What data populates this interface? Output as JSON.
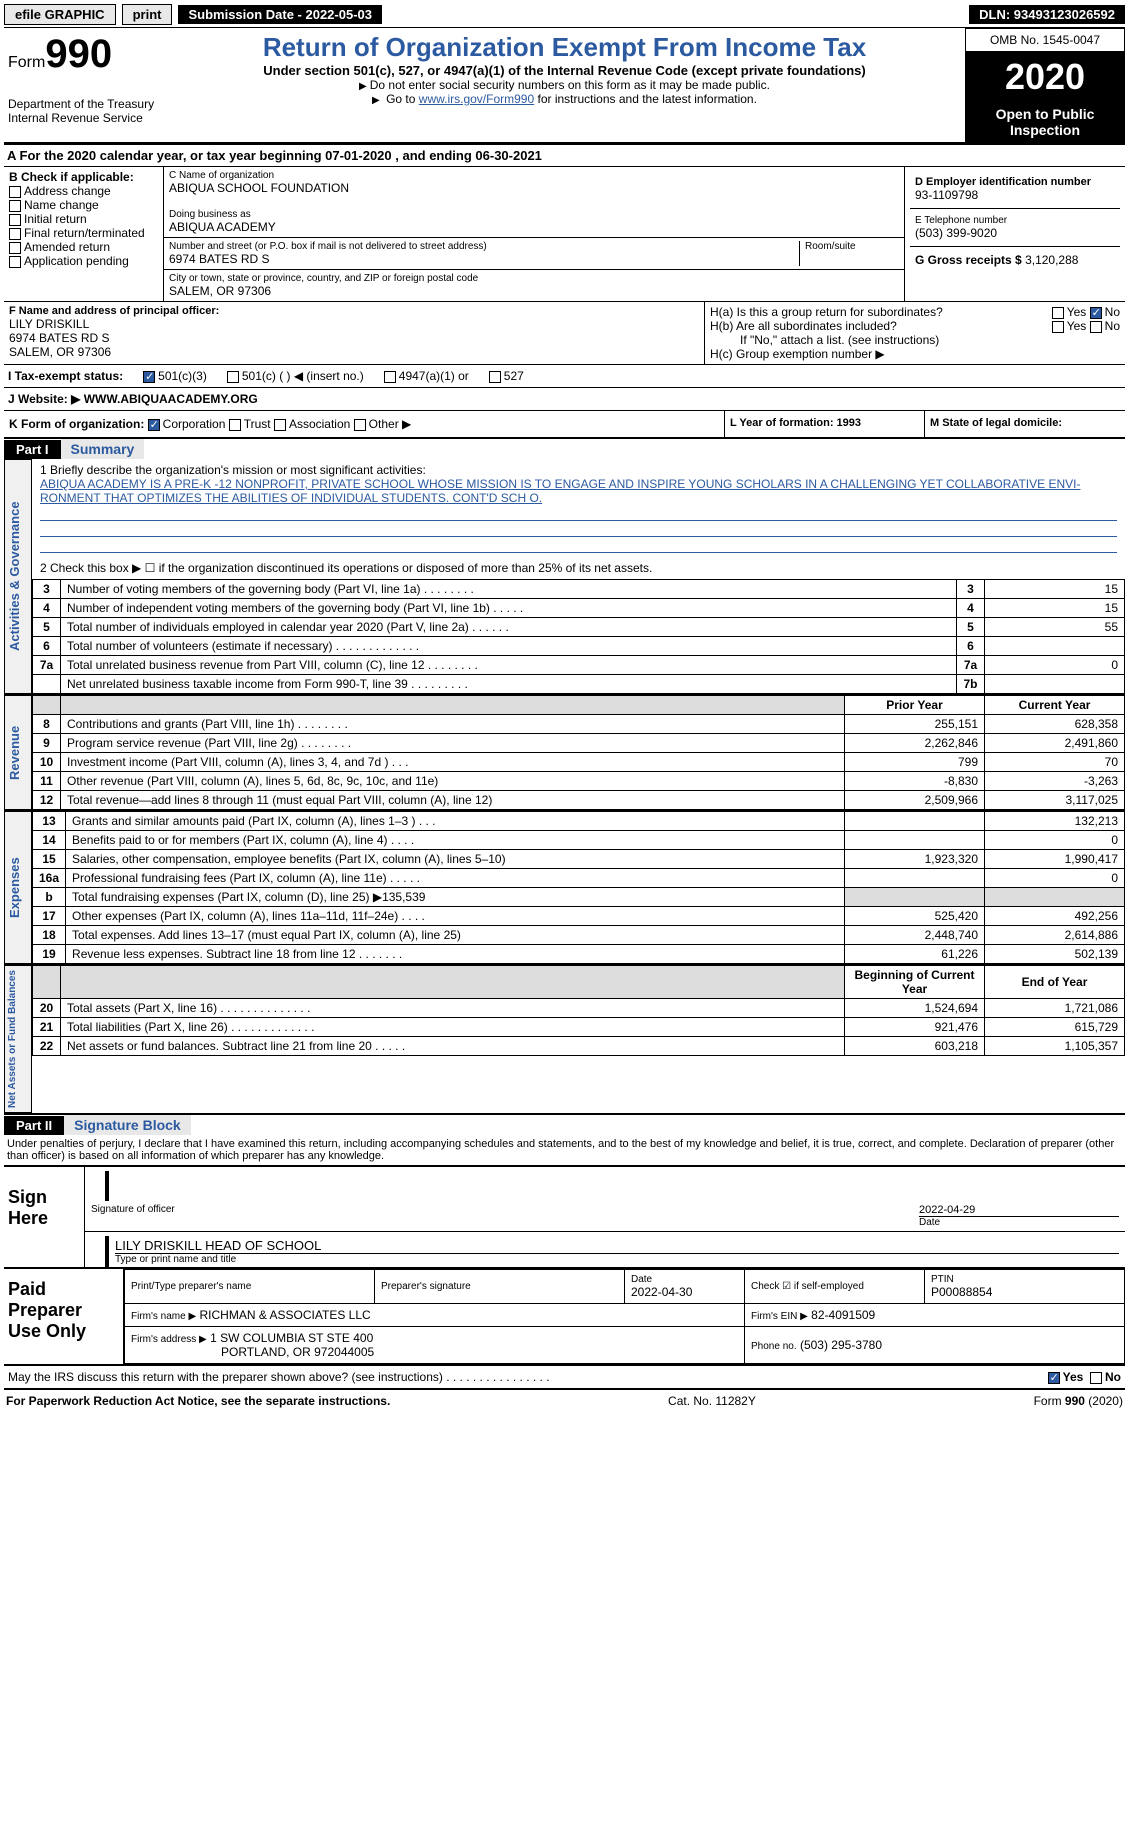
{
  "topbar": {
    "efile": "efile GRAPHIC",
    "print": "print",
    "submission": "Submission Date - 2022-05-03",
    "dln": "DLN: 93493123026592"
  },
  "header": {
    "form_label": "Form",
    "form_no": "990",
    "dept": "Department of the Treasury\nInternal Revenue Service",
    "title": "Return of Organization Exempt From Income Tax",
    "subtitle": "Under section 501(c), 527, or 4947(a)(1) of the Internal Revenue Code (except private foundations)",
    "note1": "Do not enter social security numbers on this form as it may be made public.",
    "note2_a": "Go to ",
    "note2_link": "www.irs.gov/Form990",
    "note2_b": " for instructions and the latest information.",
    "omb": "OMB No. 1545-0047",
    "year": "2020",
    "open": "Open to Public Inspection"
  },
  "calendar": "A For the 2020 calendar year, or tax year beginning 07-01-2020     , and ending 06-30-2021",
  "boxB": {
    "label": "B Check if applicable:",
    "opts": [
      "Address change",
      "Name change",
      "Initial return",
      "Final return/terminated",
      "Amended return",
      "Application pending"
    ]
  },
  "boxC": {
    "name_lbl": "C Name of organization",
    "name": "ABIQUA SCHOOL FOUNDATION",
    "dba_lbl": "Doing business as",
    "dba": "ABIQUA ACADEMY",
    "addr_lbl": "Number and street (or P.O. box if mail is not delivered to street address)",
    "room_lbl": "Room/suite",
    "addr": "6974 BATES RD S",
    "city_lbl": "City or town, state or province, country, and ZIP or foreign postal code",
    "city": "SALEM, OR  97306"
  },
  "boxD": {
    "lbl": "D Employer identification number",
    "val": "93-1109798"
  },
  "boxE": {
    "lbl": "E Telephone number",
    "val": "(503) 399-9020"
  },
  "boxG": {
    "lbl": "G Gross receipts $",
    "val": "3,120,288"
  },
  "boxF": {
    "lbl": "F Name and address of principal officer:",
    "name": "LILY DRISKILL",
    "addr1": "6974 BATES RD S",
    "addr2": "SALEM, OR  97306"
  },
  "boxH": {
    "a_q": "H(a)  Is this a group return for subordinates?",
    "yes": "Yes",
    "no": "No",
    "b_q": "H(b)  Are all subordinates included?",
    "b_note": "If \"No,\" attach a list. (see instructions)",
    "c_q": "H(c)  Group exemption number ▶"
  },
  "taxex": {
    "lbl": "I      Tax-exempt status:",
    "c501c3": "501(c)(3)",
    "c501cblank": "501(c) (  ) ◀ (insert no.)",
    "c4947": "4947(a)(1) or",
    "c527": "527"
  },
  "website": {
    "lbl": "J   Website: ▶",
    "val": "WWW.ABIQUAACADEMY.ORG"
  },
  "korg": {
    "lbl": "K Form of organization:",
    "opts": [
      "Corporation",
      "Trust",
      "Association",
      "Other ▶"
    ],
    "L": "L Year of formation: 1993",
    "M": "M State of legal domicile:"
  },
  "part1": {
    "hdr": "Part I",
    "title": "Summary"
  },
  "mission": {
    "q": "1  Briefly describe the organization's mission or most significant activities:",
    "text": "ABIQUA ACADEMY IS A PRE-K -12 NONPROFIT, PRIVATE SCHOOL WHOSE MISSION IS TO ENGAGE AND INSPIRE YOUNG SCHOLARS IN A CHALLENGING YET COLLABORATIVE ENVI- RONMENT THAT OPTIMIZES THE ABILITIES OF INDIVIDUAL STUDENTS. CONT'D SCH O."
  },
  "q2": "2   Check this box ▶  ☐  if the organization discontinued its operations or disposed of more than 25% of its net assets.",
  "gov_rows": [
    {
      "n": "3",
      "desc": "Number of voting members of the governing body (Part VI, line 1a)  .    .    .    .    .    .    .    .",
      "box": "3",
      "val": "15"
    },
    {
      "n": "4",
      "desc": "Number of independent voting members of the governing body (Part VI, line 1b)  .    .    .    .    .",
      "box": "4",
      "val": "15"
    },
    {
      "n": "5",
      "desc": "Total number of individuals employed in calendar year 2020 (Part V, line 2a)  .    .    .    .    .    .",
      "box": "5",
      "val": "55"
    },
    {
      "n": "6",
      "desc": "Total number of volunteers (estimate if necessary)  .    .    .    .    .    .    .    .    .    .    .    .    .",
      "box": "6",
      "val": ""
    },
    {
      "n": "7a",
      "desc": "Total unrelated business revenue from Part VIII, column (C), line 12  .    .    .    .    .    .    .    .",
      "box": "7a",
      "val": "0"
    },
    {
      "n": "",
      "desc": "Net unrelated business taxable income from Form 990-T, line 39  .    .    .    .    .    .    .    .    .",
      "box": "7b",
      "val": ""
    }
  ],
  "rev_hdr": {
    "prior": "Prior Year",
    "current": "Current Year"
  },
  "revenue_label": "Revenue",
  "revenue_rows": [
    {
      "n": "8",
      "desc": "Contributions and grants (Part VIII, line 1h)  .    .    .    .    .    .    .    .",
      "p": "255,151",
      "c": "628,358"
    },
    {
      "n": "9",
      "desc": "Program service revenue (Part VIII, line 2g)  .    .    .    .    .    .    .    .",
      "p": "2,262,846",
      "c": "2,491,860"
    },
    {
      "n": "10",
      "desc": "Investment income (Part VIII, column (A), lines 3, 4, and 7d )  .    .    .",
      "p": "799",
      "c": "70"
    },
    {
      "n": "11",
      "desc": "Other revenue (Part VIII, column (A), lines 5, 6d, 8c, 9c, 10c, and 11e)",
      "p": "-8,830",
      "c": "-3,263"
    },
    {
      "n": "12",
      "desc": "Total revenue—add lines 8 through 11 (must equal Part VIII, column (A), line 12)",
      "p": "2,509,966",
      "c": "3,117,025"
    }
  ],
  "expenses_label": "Expenses",
  "expenses_rows": [
    {
      "n": "13",
      "desc": "Grants and similar amounts paid (Part IX, column (A), lines 1–3 )  .    .    .",
      "p": "",
      "c": "132,213"
    },
    {
      "n": "14",
      "desc": "Benefits paid to or for members (Part IX, column (A), line 4)  .    .    .    .",
      "p": "",
      "c": "0"
    },
    {
      "n": "15",
      "desc": "Salaries, other compensation, employee benefits (Part IX, column (A), lines 5–10)",
      "p": "1,923,320",
      "c": "1,990,417"
    },
    {
      "n": "16a",
      "desc": "Professional fundraising fees (Part IX, column (A), line 11e)  .    .    .    .    .",
      "p": "",
      "c": "0"
    },
    {
      "n": "b",
      "desc": "Total fundraising expenses (Part IX, column (D), line 25) ▶135,539",
      "p": "SHADE",
      "c": "SHADE"
    },
    {
      "n": "17",
      "desc": "Other expenses (Part IX, column (A), lines 11a–11d, 11f–24e)  .    .    .    .",
      "p": "525,420",
      "c": "492,256"
    },
    {
      "n": "18",
      "desc": "Total expenses. Add lines 13–17 (must equal Part IX, column (A), line 25)",
      "p": "2,448,740",
      "c": "2,614,886"
    },
    {
      "n": "19",
      "desc": "Revenue less expenses. Subtract line 18 from line 12  .    .    .    .    .    .    .",
      "p": "61,226",
      "c": "502,139"
    }
  ],
  "netassets_label": "Net Assets or Fund Balances",
  "net_hdr": {
    "beg": "Beginning of Current Year",
    "end": "End of Year"
  },
  "net_rows": [
    {
      "n": "20",
      "desc": "Total assets (Part X, line 16)  .    .    .    .    .    .    .    .    .    .    .    .    .    .",
      "p": "1,524,694",
      "c": "1,721,086"
    },
    {
      "n": "21",
      "desc": "Total liabilities (Part X, line 26)  .    .    .    .    .    .    .    .    .    .    .    .    .",
      "p": "921,476",
      "c": "615,729"
    },
    {
      "n": "22",
      "desc": "Net assets or fund balances. Subtract line 21 from line 20  .    .    .    .    .",
      "p": "603,218",
      "c": "1,105,357"
    }
  ],
  "part2": {
    "hdr": "Part II",
    "title": "Signature Block"
  },
  "penalty": "Under penalties of perjury, I declare that I have examined this return, including accompanying schedules and statements, and to the best of my knowledge and belief, it is true, correct, and complete. Declaration of preparer (other than officer) is based on all information of which preparer has any knowledge.",
  "sign": {
    "lbl": "Sign Here",
    "sig_lbl": "Signature of officer",
    "date": "2022-04-29",
    "date_lbl": "Date",
    "name": "LILY DRISKILL HEAD OF SCHOOL",
    "name_lbl": "Type or print name and title"
  },
  "paid": {
    "lbl": "Paid Preparer Use Only",
    "h1": "Print/Type preparer's name",
    "h2": "Preparer's signature",
    "h3": "Date",
    "h3v": "2022-04-30",
    "h4": "Check ☑ if self-employed",
    "h5": "PTIN",
    "h5v": "P00088854",
    "firm_lbl": "Firm's name     ▶",
    "firm": "RICHMAN & ASSOCIATES LLC",
    "ein_lbl": "Firm's EIN ▶",
    "ein": "82-4091509",
    "faddr_lbl": "Firm's address ▶",
    "faddr1": "1 SW COLUMBIA ST STE 400",
    "faddr2": "PORTLAND, OR  972044005",
    "phone_lbl": "Phone no.",
    "phone": "(503) 295-3780"
  },
  "discuss": "May the IRS discuss this return with the preparer shown above? (see instructions)   .    .    .    .    .    .    .    .    .    .    .    .    .    .    .    .",
  "footer": {
    "left": "For Paperwork Reduction Act Notice, see the separate instructions.",
    "mid": "Cat. No. 11282Y",
    "right": "Form 990 (2020)"
  }
}
